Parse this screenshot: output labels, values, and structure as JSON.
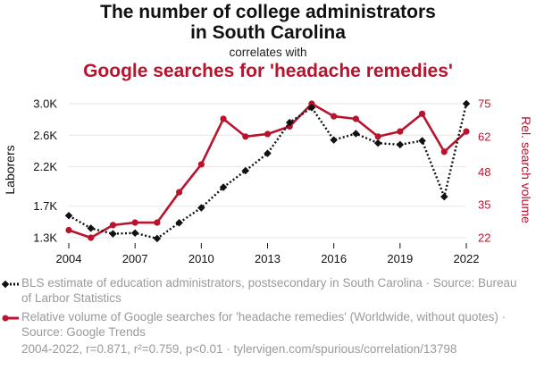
{
  "titles": {
    "line1": "The number of college administrators",
    "line2": "in South Carolina",
    "connector": "correlates with",
    "line3": "Google searches for 'headache remedies'"
  },
  "colors": {
    "series1": "#111111",
    "series2": "#b8142e",
    "grid": "#e6e6e6",
    "muted": "#9a9a9a"
  },
  "chart_data": {
    "type": "line",
    "x": [
      2004,
      2005,
      2006,
      2007,
      2008,
      2009,
      2010,
      2011,
      2012,
      2013,
      2014,
      2015,
      2016,
      2017,
      2018,
      2019,
      2020,
      2021,
      2022
    ],
    "xlim": [
      2004,
      2022
    ],
    "x_ticks": [
      "2004",
      "2007",
      "2010",
      "2013",
      "2016",
      "2019",
      "2022"
    ],
    "y_left": {
      "label": "Laborers",
      "lim": [
        1300,
        3000
      ],
      "ticks": [
        1300,
        1700,
        2200,
        2600,
        3000
      ],
      "tick_labels": [
        "1.3K",
        "1.7K",
        "2.2K",
        "2.6K",
        "3.0K"
      ]
    },
    "y_right": {
      "label": "Rel. search volume",
      "lim": [
        22,
        75
      ],
      "ticks": [
        22,
        35,
        48,
        62,
        75
      ],
      "tick_labels": [
        "22",
        "35",
        "48",
        "62",
        "75"
      ]
    },
    "series": [
      {
        "axis": "left",
        "style": "dotted-diamond",
        "values": [
          1580,
          1420,
          1350,
          1360,
          1290,
          1490,
          1680,
          1940,
          2150,
          2370,
          2760,
          2950,
          2540,
          2620,
          2500,
          2480,
          2530,
          1820,
          3000
        ]
      },
      {
        "axis": "right",
        "style": "solid-circle",
        "values": [
          25,
          22,
          27,
          28,
          28,
          40,
          51,
          69,
          62,
          63,
          66,
          75,
          70,
          69,
          62,
          64,
          71,
          56,
          64
        ]
      }
    ],
    "grid": "horizontal",
    "legend": "bottom"
  },
  "legend": {
    "item1": "BLS estimate of education administrators, postsecondary in South Carolina · Source: Bureau of Larbor Statistics",
    "item2": "Relative volume of Google searches for 'headache remedies' (Worldwide, without quotes) · Source: Google Trends"
  },
  "footer": "2004-2022, r=0.871, r²=0.759, p<0.01 · tylervigen.com/spurious/correlation/13798"
}
